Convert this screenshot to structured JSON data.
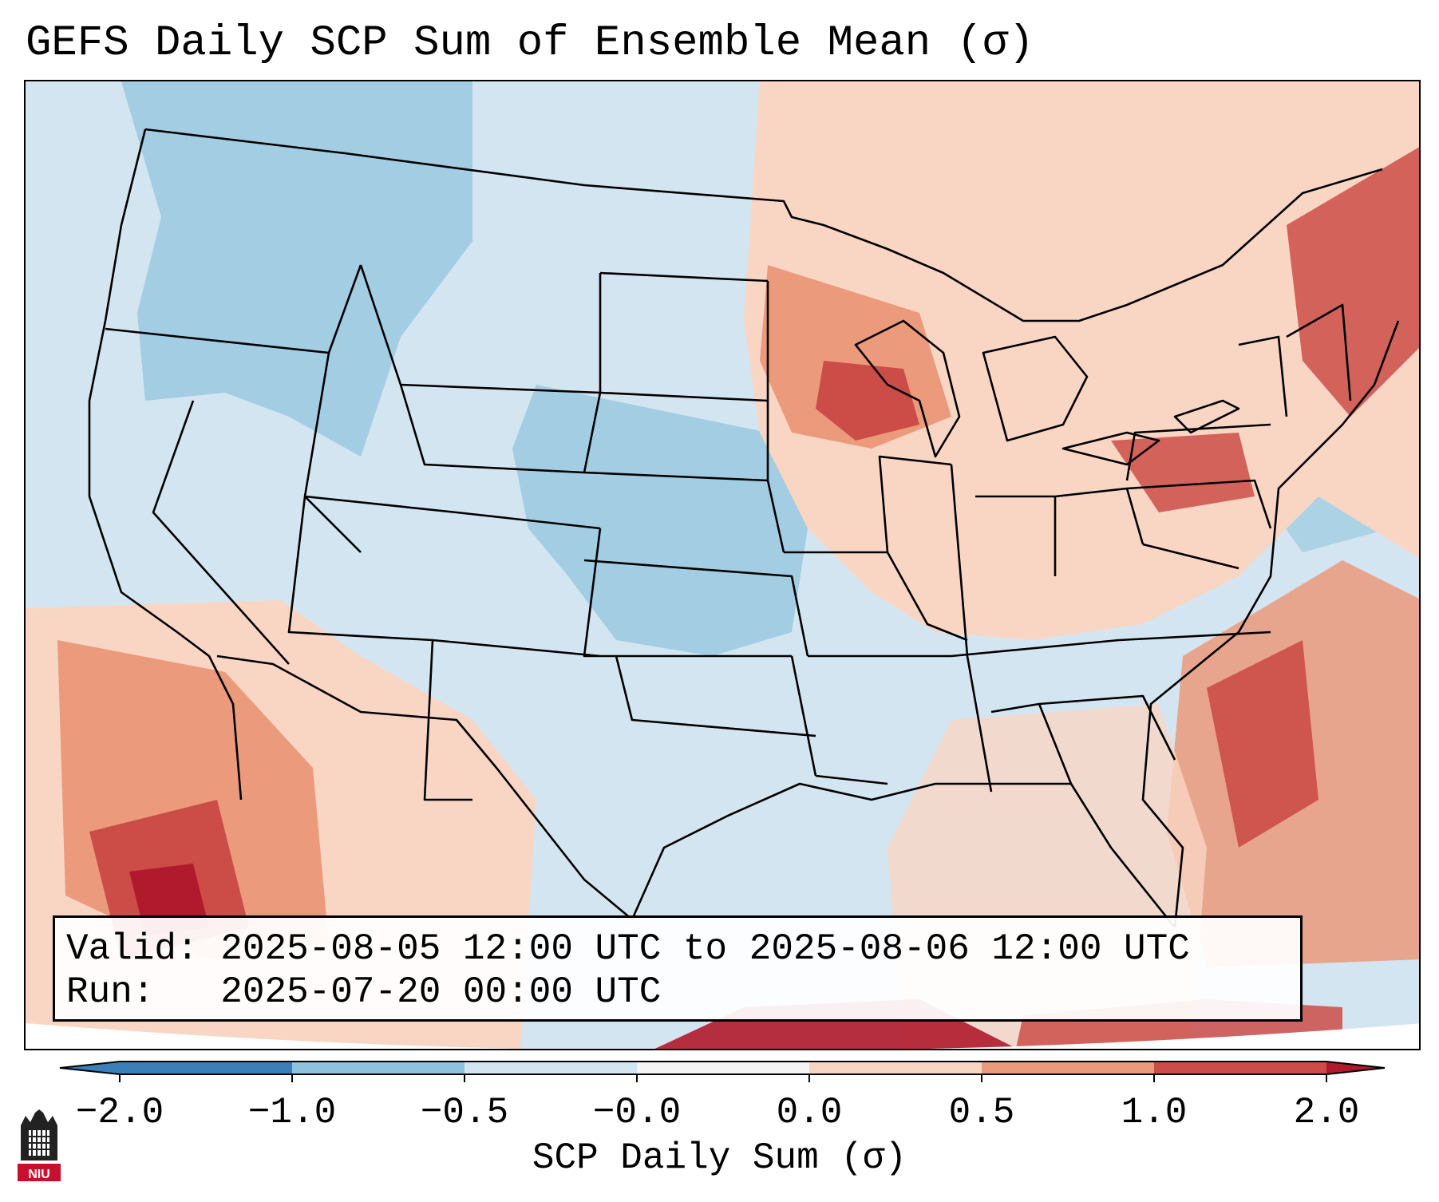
{
  "title": "GEFS Daily SCP Sum of Ensemble Mean (σ)",
  "info": {
    "valid_label": "Valid:",
    "valid_value": "2025-08-05 12:00 UTC to 2025-08-06 12:00 UTC",
    "run_label": "Run:",
    "run_value": "2025-07-20 00:00 UTC"
  },
  "colorbar": {
    "label": "SCP Daily Sum (σ)",
    "ticks": [
      "−2.0",
      "−1.0",
      "−0.5",
      "−0.0",
      "0.0",
      "0.5",
      "1.0",
      "2.0"
    ],
    "colors": [
      "#3a7fba",
      "#8fc2de",
      "#d3e5f0",
      "#f5f5f5",
      "#f9d6c4",
      "#eb9a7c",
      "#cc4d48",
      "#b01a2c"
    ],
    "extend": "both"
  },
  "logo": {
    "text": "NIU",
    "name": "Northern Illinois University"
  },
  "map": {
    "region": "Contiguous United States",
    "background_color": "#d3e5f0",
    "field_colors": {
      "weak_negative": "#d3e5f0",
      "negative": "#92c4df",
      "weak_positive": "#f9d6c4",
      "positive": "#eb9a7c",
      "strong_positive": "#cc4d48",
      "extreme_positive": "#b01a2c"
    }
  }
}
